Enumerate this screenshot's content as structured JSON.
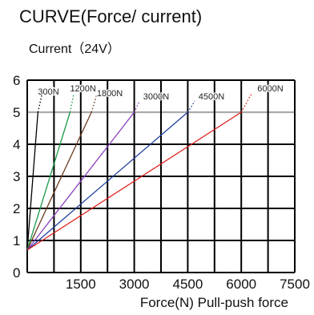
{
  "title": "CURVE(Force/ current)",
  "subtitle": "Current（24V）",
  "chart_data": {
    "type": "line",
    "title": "CURVE(Force/ current)",
    "subtitle": "Current（24V）",
    "xlabel": "Force(N) Pull-push force",
    "ylabel": "",
    "xlim": [
      0,
      7500
    ],
    "ylim": [
      0,
      6
    ],
    "x_ticks": [
      "1500",
      "3000",
      "4500",
      "6000",
      "7500"
    ],
    "y_ticks": [
      "0",
      "1",
      "2",
      "3",
      "4",
      "5",
      "6"
    ],
    "grid": true,
    "reference_line": {
      "y": 5,
      "color": "#aaaaaa"
    },
    "series": [
      {
        "name": "300N",
        "color": "#000000",
        "points": [
          [
            0,
            0.7
          ],
          [
            300,
            5.0
          ]
        ],
        "dotted_to": [
          410,
          5.55
        ],
        "label_at": [
          300,
          5.6
        ]
      },
      {
        "name": "1200N",
        "color": "#1a9a4a",
        "points": [
          [
            0,
            0.7
          ],
          [
            1200,
            5.0
          ]
        ],
        "dotted_to": [
          1300,
          5.55
        ],
        "label_at": [
          1200,
          5.7
        ]
      },
      {
        "name": "1800N",
        "color": "#6b3a1e",
        "points": [
          [
            0,
            0.7
          ],
          [
            1800,
            5.0
          ]
        ],
        "dotted_to": [
          1950,
          5.55
        ],
        "label_at": [
          1950,
          5.55
        ]
      },
      {
        "name": "3000N",
        "color": "#8a3fbf",
        "points": [
          [
            0,
            0.7
          ],
          [
            3000,
            5.0
          ]
        ],
        "dotted_to": [
          3150,
          5.35
        ],
        "label_at": [
          3250,
          5.45
        ]
      },
      {
        "name": "4500N",
        "color": "#1f3f9f",
        "points": [
          [
            0,
            0.7
          ],
          [
            4500,
            5.0
          ]
        ],
        "dotted_to": [
          4700,
          5.35
        ],
        "label_at": [
          4800,
          5.45
        ]
      },
      {
        "name": "6000N",
        "color": "#e0201c",
        "points": [
          [
            0,
            0.7
          ],
          [
            6000,
            5.0
          ]
        ],
        "dotted_to": [
          6300,
          5.6
        ],
        "label_at": [
          6450,
          5.7
        ]
      }
    ]
  }
}
